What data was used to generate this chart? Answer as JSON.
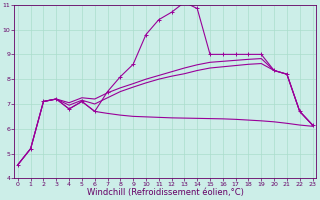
{
  "background_color": "#cceee8",
  "grid_color": "#aaddcc",
  "line_color": "#990099",
  "spine_color": "#660066",
  "xlim": [
    -0.3,
    23.3
  ],
  "ylim": [
    4,
    11
  ],
  "xlabel": "Windchill (Refroidissement éolien,°C)",
  "xticks": [
    0,
    1,
    2,
    3,
    4,
    5,
    6,
    7,
    8,
    9,
    10,
    11,
    12,
    13,
    14,
    15,
    16,
    17,
    18,
    19,
    20,
    21,
    22,
    23
  ],
  "yticks": [
    4,
    5,
    6,
    7,
    8,
    9,
    10,
    11
  ],
  "tick_color": "#660066",
  "tick_fontsize": 4.5,
  "xlabel_fontsize": 6.0,
  "lines": [
    {
      "x": [
        0,
        1,
        2,
        3,
        4,
        5,
        6,
        7,
        8,
        9,
        10,
        11,
        12,
        13,
        14,
        15,
        16,
        17,
        18,
        19,
        20,
        21,
        22,
        23
      ],
      "y": [
        4.55,
        5.2,
        7.1,
        7.2,
        6.8,
        7.1,
        6.7,
        7.5,
        8.1,
        8.6,
        9.8,
        10.4,
        10.7,
        11.1,
        10.85,
        9.0,
        9.0,
        9.0,
        9.0,
        9.0,
        8.35,
        8.2,
        6.7,
        6.15
      ],
      "marker": "+",
      "markersize": 3.5,
      "linewidth": 0.8,
      "has_markers": true
    },
    {
      "x": [
        0,
        1,
        2,
        3,
        4,
        5,
        6,
        7,
        8,
        9,
        10,
        11,
        12,
        13,
        14,
        15,
        16,
        17,
        18,
        19,
        20,
        21,
        22,
        23
      ],
      "y": [
        4.55,
        5.2,
        7.1,
        7.2,
        7.05,
        7.25,
        7.2,
        7.45,
        7.65,
        7.82,
        8.0,
        8.15,
        8.3,
        8.45,
        8.58,
        8.68,
        8.72,
        8.76,
        8.8,
        8.83,
        8.35,
        8.2,
        6.7,
        6.15
      ],
      "marker": null,
      "linewidth": 0.8,
      "has_markers": false
    },
    {
      "x": [
        0,
        1,
        2,
        3,
        4,
        5,
        6,
        7,
        8,
        9,
        10,
        11,
        12,
        13,
        14,
        15,
        16,
        17,
        18,
        19,
        20,
        21,
        22,
        23
      ],
      "y": [
        4.55,
        5.2,
        7.1,
        7.2,
        6.95,
        7.15,
        7.0,
        7.25,
        7.5,
        7.68,
        7.85,
        8.0,
        8.12,
        8.22,
        8.35,
        8.45,
        8.5,
        8.55,
        8.6,
        8.63,
        8.35,
        8.2,
        6.7,
        6.15
      ],
      "marker": null,
      "linewidth": 0.8,
      "has_markers": false
    },
    {
      "x": [
        2,
        3,
        4,
        5,
        6,
        7,
        8,
        9,
        10,
        11,
        12,
        13,
        14,
        15,
        16,
        17,
        18,
        19,
        20,
        21,
        22,
        23
      ],
      "y": [
        7.1,
        7.2,
        6.8,
        7.1,
        6.7,
        6.62,
        6.55,
        6.5,
        6.48,
        6.46,
        6.44,
        6.43,
        6.42,
        6.41,
        6.4,
        6.38,
        6.35,
        6.32,
        6.28,
        6.22,
        6.15,
        6.1
      ],
      "marker": null,
      "linewidth": 0.8,
      "has_markers": false
    }
  ]
}
